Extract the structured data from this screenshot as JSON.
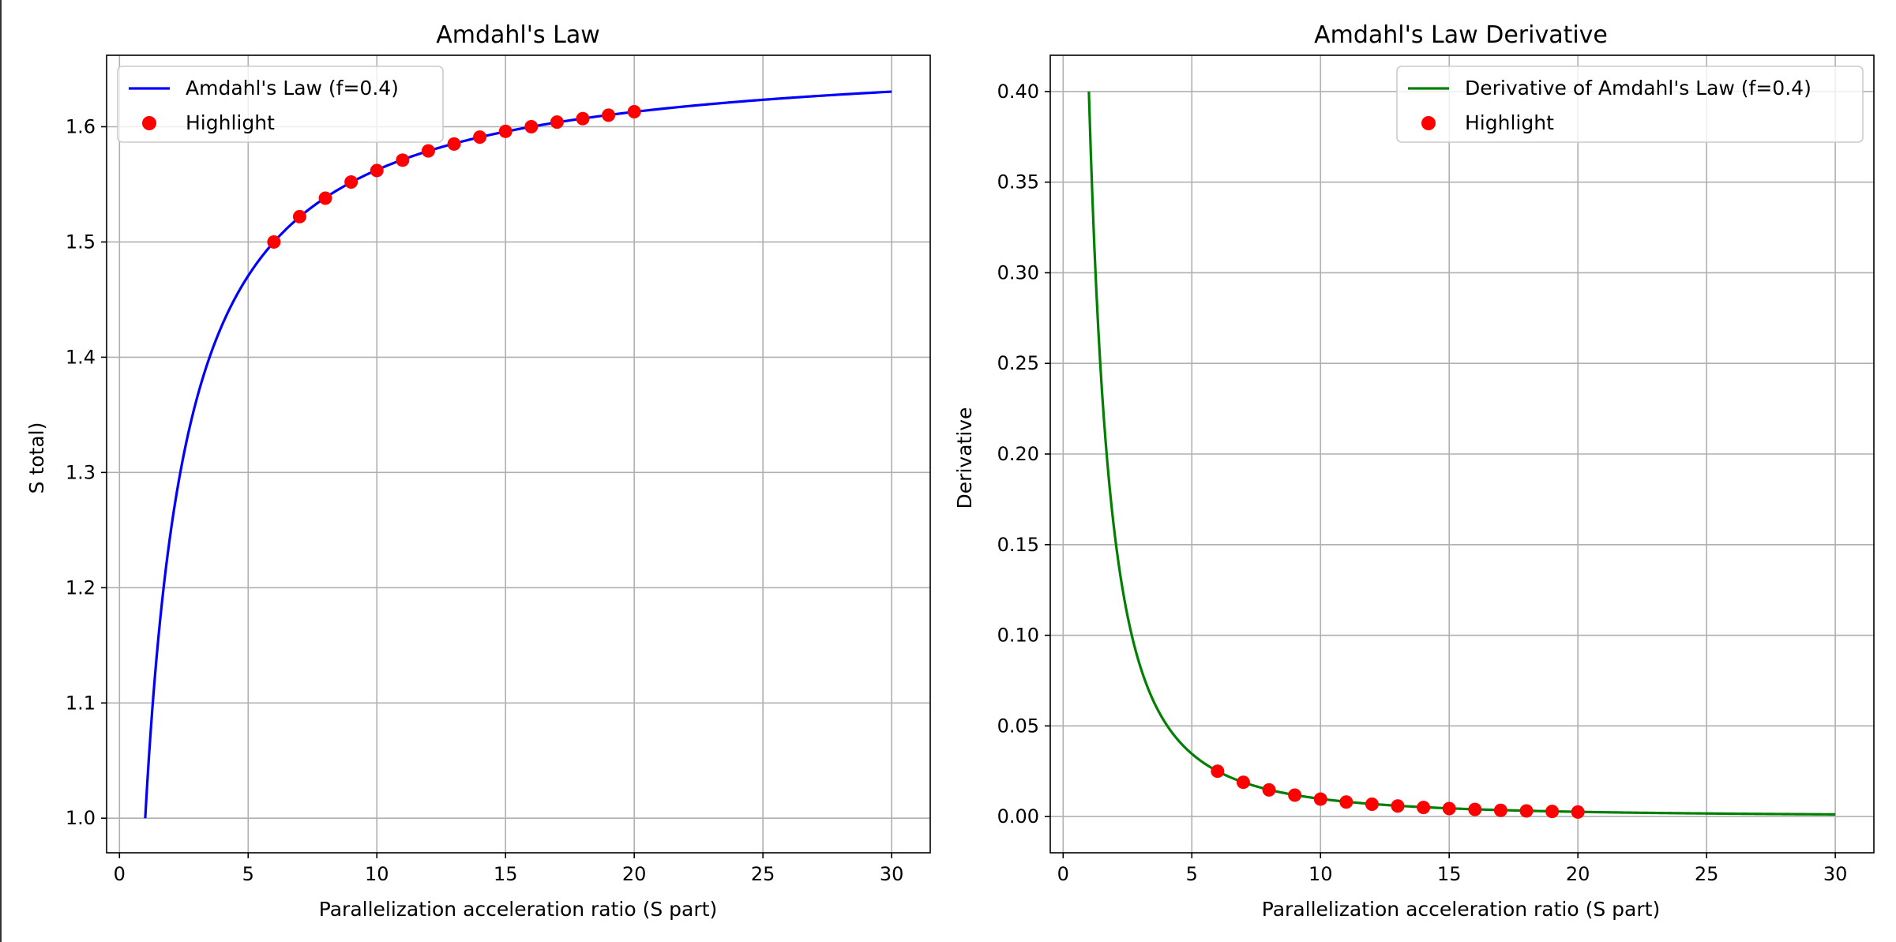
{
  "chart_data": [
    {
      "type": "line",
      "title": "Amdahl's Law",
      "xlabel": "Parallelization acceleration ratio (S part)",
      "ylabel": "S total)",
      "xlim": [
        -0.5,
        31.5
      ],
      "ylim": [
        0.97,
        1.662
      ],
      "x_ticks": [
        0,
        5,
        10,
        15,
        20,
        25,
        30
      ],
      "y_ticks": [
        1.0,
        1.1,
        1.2,
        1.3,
        1.4,
        1.5,
        1.6
      ],
      "x_tick_labels": [
        "0",
        "5",
        "10",
        "15",
        "20",
        "25",
        "30"
      ],
      "y_tick_labels": [
        "1.0",
        "1.1",
        "1.2",
        "1.3",
        "1.4",
        "1.5",
        "1.6"
      ],
      "grid": true,
      "legend_position": "top-left",
      "series": [
        {
          "name": "Amdahl's Law (f=0.4)",
          "kind": "line",
          "color": "#0000ff",
          "x_range": [
            1,
            30
          ],
          "function": "amdahl",
          "f": 0.4
        },
        {
          "name": "Highlight",
          "kind": "scatter",
          "color": "#ff0000",
          "x": [
            6,
            7,
            8,
            9,
            10,
            11,
            12,
            13,
            14,
            15,
            16,
            17,
            18,
            19,
            20
          ],
          "y": [
            1.5,
            1.522,
            1.538,
            1.552,
            1.562,
            1.571,
            1.579,
            1.585,
            1.591,
            1.596,
            1.6,
            1.604,
            1.607,
            1.61,
            1.613
          ]
        }
      ]
    },
    {
      "type": "line",
      "title": "Amdahl's Law Derivative",
      "xlabel": "Parallelization acceleration ratio (S part)",
      "ylabel": "Derivative",
      "xlim": [
        -0.5,
        31.5
      ],
      "ylim": [
        -0.02,
        0.42
      ],
      "x_ticks": [
        0,
        5,
        10,
        15,
        20,
        25,
        30
      ],
      "y_ticks": [
        0.0,
        0.05,
        0.1,
        0.15,
        0.2,
        0.25,
        0.3,
        0.35,
        0.4
      ],
      "x_tick_labels": [
        "0",
        "5",
        "10",
        "15",
        "20",
        "25",
        "30"
      ],
      "y_tick_labels": [
        "0.00",
        "0.05",
        "0.10",
        "0.15",
        "0.20",
        "0.25",
        "0.30",
        "0.35",
        "0.40"
      ],
      "grid": true,
      "legend_position": "top-right",
      "series": [
        {
          "name": "Derivative of Amdahl's Law (f=0.4)",
          "kind": "line",
          "color": "#008000",
          "x_range": [
            1,
            30
          ],
          "function": "amdahl-derivative",
          "f": 0.4
        },
        {
          "name": "Highlight",
          "kind": "scatter",
          "color": "#ff0000",
          "x": [
            6,
            7,
            8,
            9,
            10,
            11,
            12,
            13,
            14,
            15,
            16,
            17,
            18,
            19,
            20
          ],
          "y": [
            0.025,
            0.0189,
            0.0147,
            0.0118,
            0.0096,
            0.008,
            0.0068,
            0.0058,
            0.005,
            0.0044,
            0.0039,
            0.0034,
            0.0031,
            0.0028,
            0.0025
          ]
        }
      ]
    }
  ]
}
